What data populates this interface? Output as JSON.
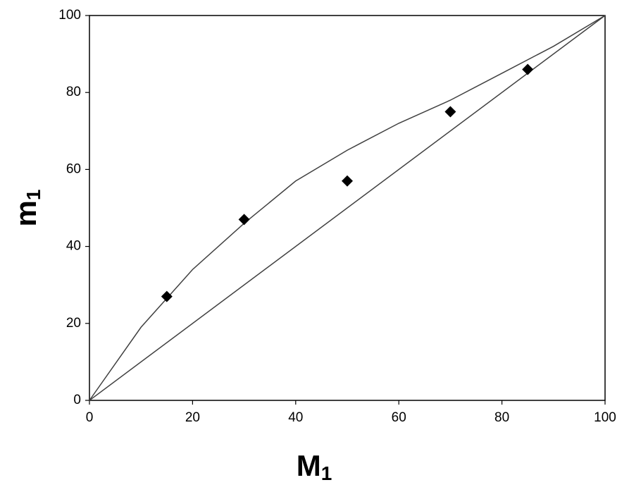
{
  "chart_data": {
    "type": "scatter",
    "xlabel": "M",
    "xlabel_subscript": "1",
    "ylabel": "m",
    "ylabel_subscript": "1",
    "xlim": [
      0,
      100
    ],
    "ylim": [
      0,
      100
    ],
    "xticks": [
      0,
      20,
      40,
      60,
      80,
      100
    ],
    "yticks": [
      0,
      20,
      40,
      60,
      80,
      100
    ],
    "grid": false,
    "series": [
      {
        "type": "line",
        "color": "#404040",
        "x": [
          0,
          100
        ],
        "values": [
          0,
          100
        ]
      },
      {
        "type": "line",
        "color": "#404040",
        "x": [
          0,
          10,
          20,
          30,
          40,
          50,
          60,
          70,
          80,
          90,
          100
        ],
        "values": [
          0,
          19,
          34,
          46,
          57,
          65,
          72,
          78,
          85,
          92,
          100
        ]
      },
      {
        "type": "scatter",
        "color": "#000000",
        "x": [
          15,
          30,
          50,
          70,
          85
        ],
        "values": [
          27,
          47,
          57,
          75,
          86
        ]
      }
    ]
  }
}
